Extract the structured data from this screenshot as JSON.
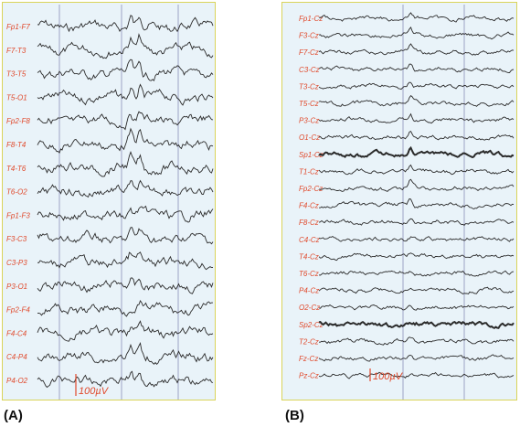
{
  "panels": [
    {
      "id": "A",
      "label": "(A)",
      "channels": [
        "Fp1-F7",
        "F7-T3",
        "T3-T5",
        "T5-O1",
        "Fp2-F8",
        "F8-T4",
        "T4-T6",
        "T6-O2",
        "Fp1-F3",
        "F3-C3",
        "C3-P3",
        "P3-O1",
        "Fp2-F4",
        "F4-C4",
        "C4-P4",
        "P4-O2"
      ],
      "scale": "100µV"
    },
    {
      "id": "B",
      "label": "(B)",
      "channels": [
        "Fp1-Cz",
        "F3-Cz",
        "F7-Cz",
        "C3-Cz",
        "T3-Cz",
        "T5-Cz",
        "P3-Cz",
        "O1-Cz",
        "Sp1-Cz",
        "T1-Cz",
        "Fp2-Cz",
        "F4-Cz",
        "F8-Cz",
        "C4-Cz",
        "T4-Cz",
        "T6-Cz",
        "P4-Cz",
        "O2-Cz",
        "Sp2-Cz",
        "T2-Cz",
        "Fz-Cz",
        "Pz-Cz"
      ],
      "scale": "100µV"
    }
  ],
  "colors": {
    "background": "#e9f3f9",
    "border": "#d9d45a",
    "label": "#e0482a",
    "trace": "#2b2b2b",
    "gridline": "#8a8fb8"
  }
}
